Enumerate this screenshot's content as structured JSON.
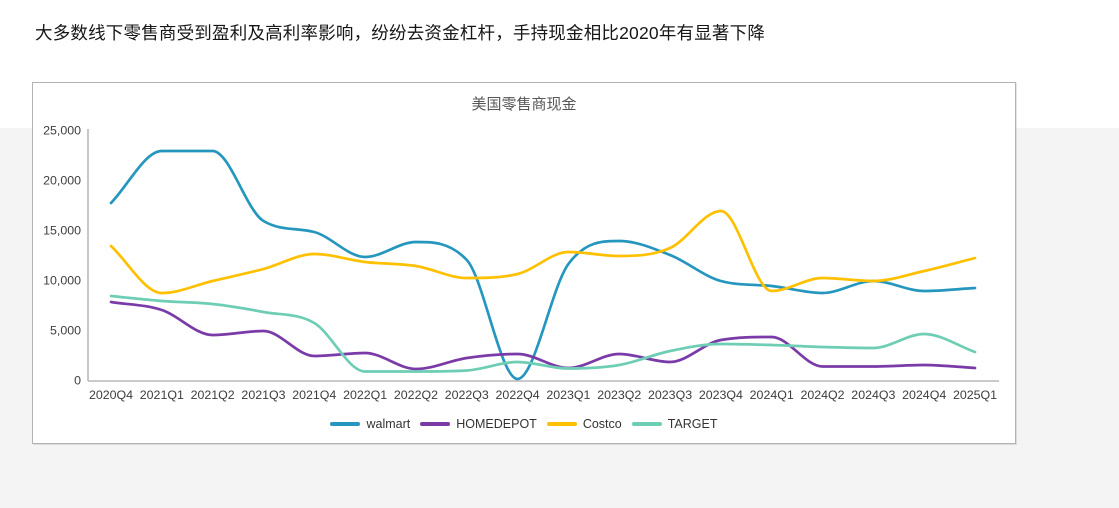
{
  "page": {
    "heading": "大多数线下零售商受到盈利及高利率影响，纷纷去资金杠杆，手持现金相比2020年有显著下降"
  },
  "chart_data": {
    "type": "line",
    "title": "美国零售商现金",
    "categories": [
      "2020Q4",
      "2021Q1",
      "2021Q2",
      "2021Q3",
      "2021Q4",
      "2022Q1",
      "2022Q2",
      "2022Q3",
      "2022Q4",
      "2023Q1",
      "2023Q2",
      "2023Q3",
      "2023Q4",
      "2024Q1",
      "2024Q2",
      "2024Q3",
      "2024Q4",
      "2025Q1"
    ],
    "series": [
      {
        "name": "walmart",
        "color": "#2596be",
        "values": [
          17800,
          23000,
          23000,
          16000,
          14900,
          12400,
          13900,
          12100,
          200,
          11700,
          14000,
          12600,
          10000,
          9500,
          8800,
          10000,
          9000,
          9300
        ]
      },
      {
        "name": "HOMEDEPOT",
        "color": "#7a3ba8",
        "values": [
          7900,
          7100,
          4600,
          5000,
          2500,
          2800,
          1200,
          2300,
          2700,
          1300,
          2700,
          1900,
          4100,
          4400,
          1450,
          1450,
          1600,
          1300
        ]
      },
      {
        "name": "Costco",
        "color": "#ffc000",
        "values": [
          13500,
          8800,
          10000,
          11200,
          12700,
          11900,
          11500,
          10300,
          10700,
          12900,
          12500,
          13300,
          17000,
          9000,
          10300,
          10000,
          11000,
          12300
        ]
      },
      {
        "name": "TARGET",
        "color": "#6ecdb5",
        "values": [
          8500,
          8000,
          7700,
          6900,
          5800,
          950,
          950,
          1050,
          1900,
          1250,
          1600,
          3000,
          3700,
          3600,
          3400,
          3300,
          4700,
          2900
        ]
      }
    ],
    "ylim": [
      0,
      25000
    ],
    "y_tick_step": 5000,
    "y_tick_labels": [
      "0",
      "5,000",
      "10,000",
      "15,000",
      "20,000",
      "25,000"
    ],
    "grid": false,
    "legend_position": "bottom",
    "axis_color": "#b9b9b9"
  }
}
